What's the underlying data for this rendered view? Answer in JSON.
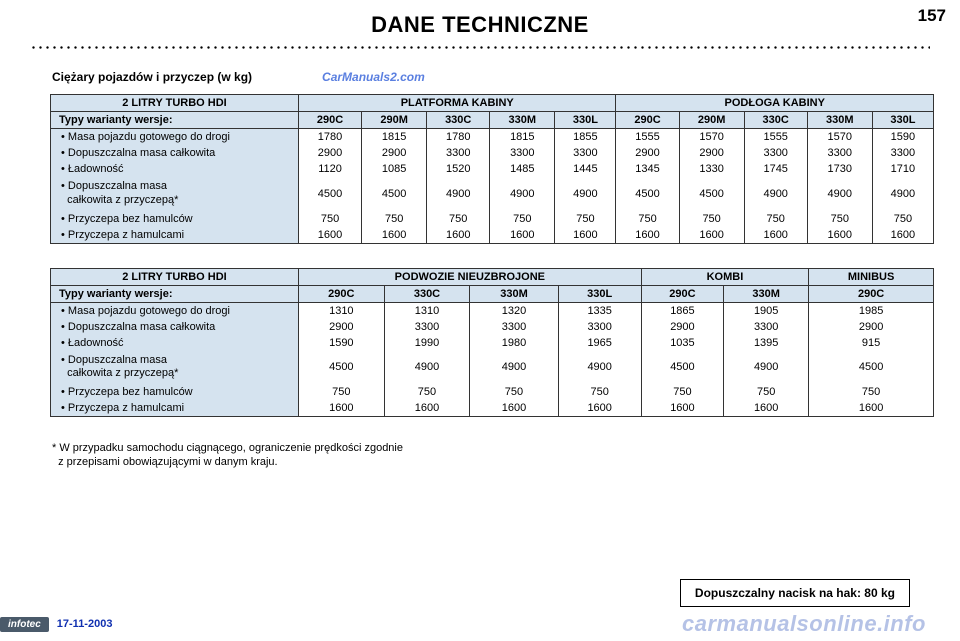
{
  "page_number": "157",
  "title": "DANE TECHNICZNE",
  "subheading": "Ciężary pojazdów i przyczep (w kg)",
  "watermark": "CarManuals2.com",
  "footer_watermark": "carmanualsonline.info",
  "infotec_label": "infotec",
  "date": "17-11-2003",
  "footnote_line1": "* W przypadku samochodu ciągnącego, ograniczenie prędkości zgodnie",
  "footnote_line2": "z przepisami obowiązującymi w danym kraju.",
  "tow_note": "Dopuszczalny nacisk na hak: 80 kg",
  "table1": {
    "engine_label": "2 LITRY TURBO HDI",
    "group_headers": [
      "PLATFORMA KABINY",
      "PODŁOGA KABINY"
    ],
    "variant_label": "Typy warianty wersje:",
    "variants": [
      "290C",
      "290M",
      "330C",
      "330M",
      "330L",
      "290C",
      "290M",
      "330C",
      "330M",
      "330L"
    ],
    "rows": [
      {
        "label": "• Masa pojazdu gotowego do drogi",
        "v": [
          "1780",
          "1815",
          "1780",
          "1815",
          "1855",
          "1555",
          "1570",
          "1555",
          "1570",
          "1590"
        ]
      },
      {
        "label": "• Dopuszczalna masa całkowita",
        "v": [
          "2900",
          "2900",
          "3300",
          "3300",
          "3300",
          "2900",
          "2900",
          "3300",
          "3300",
          "3300"
        ]
      },
      {
        "label": "• Ładowność",
        "v": [
          "1120",
          "1085",
          "1520",
          "1485",
          "1445",
          "1345",
          "1330",
          "1745",
          "1730",
          "1710"
        ]
      },
      {
        "label": "• Dopuszczalna masa",
        "label2": "  całkowita z przyczepą*",
        "v": [
          "4500",
          "4500",
          "4900",
          "4900",
          "4900",
          "4500",
          "4500",
          "4900",
          "4900",
          "4900"
        ]
      },
      {
        "label": "• Przyczepa bez hamulców",
        "v": [
          "750",
          "750",
          "750",
          "750",
          "750",
          "750",
          "750",
          "750",
          "750",
          "750"
        ]
      },
      {
        "label": "• Przyczepa z hamulcami",
        "v": [
          "1600",
          "1600",
          "1600",
          "1600",
          "1600",
          "1600",
          "1600",
          "1600",
          "1600",
          "1600"
        ]
      }
    ]
  },
  "table2": {
    "engine_label": "2 LITRY TURBO HDI",
    "group_headers": [
      "PODWOZIE NIEUZBROJONE",
      "KOMBI",
      "MINIBUS"
    ],
    "variant_label": "Typy warianty wersje:",
    "variants": [
      "290C",
      "330C",
      "330M",
      "330L",
      "290C",
      "330M",
      "290C"
    ],
    "rows": [
      {
        "label": "• Masa pojazdu gotowego do drogi",
        "v": [
          "1310",
          "1310",
          "1320",
          "1335",
          "1865",
          "1905",
          "1985"
        ]
      },
      {
        "label": "• Dopuszczalna masa całkowita",
        "v": [
          "2900",
          "3300",
          "3300",
          "3300",
          "2900",
          "3300",
          "2900"
        ]
      },
      {
        "label": "• Ładowność",
        "v": [
          "1590",
          "1990",
          "1980",
          "1965",
          "1035",
          "1395",
          "915"
        ]
      },
      {
        "label": "• Dopuszczalna masa",
        "label2": "  całkowita z przyczepą*",
        "v": [
          "4500",
          "4900",
          "4900",
          "4900",
          "4500",
          "4900",
          "4500"
        ]
      },
      {
        "label": "• Przyczepa bez hamulców",
        "v": [
          "750",
          "750",
          "750",
          "750",
          "750",
          "750",
          "750"
        ]
      },
      {
        "label": "• Przyczepa z hamulcami",
        "v": [
          "1600",
          "1600",
          "1600",
          "1600",
          "1600",
          "1600",
          "1600"
        ]
      }
    ]
  },
  "colors": {
    "header_bg": "#d5e3ef",
    "border": "#333333",
    "link_blue": "#5a7fe0"
  }
}
